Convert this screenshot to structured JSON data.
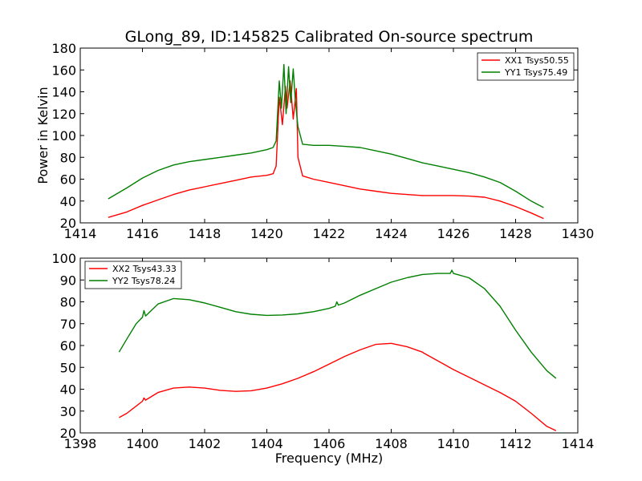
{
  "figure": {
    "title": "GLong_89, ID:145825 Calibrated On-source spectrum",
    "xlabel": "Frequency (MHz)"
  },
  "chart_data": [
    {
      "type": "line",
      "title": "GLong_89, ID:145825 Calibrated On-source spectrum",
      "xlabel": "",
      "ylabel": "Power in Kelvin",
      "xlim": [
        1414,
        1430
      ],
      "ylim": [
        20,
        180
      ],
      "xticks": [
        1414,
        1416,
        1418,
        1420,
        1422,
        1424,
        1426,
        1428,
        1430
      ],
      "yticks": [
        20,
        40,
        60,
        80,
        100,
        120,
        140,
        160,
        180
      ],
      "legend_position": "top-right",
      "series": [
        {
          "name": "XX1 Tsys50.55",
          "color": "#ff0000",
          "points": [
            [
              1414.9,
              25
            ],
            [
              1415.5,
              30
            ],
            [
              1416,
              36
            ],
            [
              1416.5,
              41
            ],
            [
              1417,
              46
            ],
            [
              1417.5,
              50
            ],
            [
              1418,
              53
            ],
            [
              1418.5,
              56
            ],
            [
              1419,
              59
            ],
            [
              1419.5,
              62
            ],
            [
              1420,
              63.5
            ],
            [
              1420.2,
              65
            ],
            [
              1420.3,
              72
            ],
            [
              1420.4,
              135
            ],
            [
              1420.5,
              110
            ],
            [
              1420.6,
              145
            ],
            [
              1420.65,
              125
            ],
            [
              1420.75,
              150
            ],
            [
              1420.85,
              115
            ],
            [
              1420.95,
              143
            ],
            [
              1421.0,
              80
            ],
            [
              1421.15,
              63
            ],
            [
              1421.5,
              60
            ],
            [
              1422,
              57
            ],
            [
              1422.5,
              54
            ],
            [
              1423,
              51
            ],
            [
              1423.5,
              49
            ],
            [
              1424,
              47
            ],
            [
              1424.5,
              46
            ],
            [
              1425,
              45
            ],
            [
              1425.5,
              45
            ],
            [
              1426,
              45
            ],
            [
              1426.5,
              44.5
            ],
            [
              1427,
              43.5
            ],
            [
              1427.5,
              40
            ],
            [
              1428,
              35
            ],
            [
              1428.5,
              29
            ],
            [
              1428.9,
              24
            ]
          ]
        },
        {
          "name": "YY1 Tsys75.49",
          "color": "#008000",
          "points": [
            [
              1414.9,
              42
            ],
            [
              1415.5,
              52
            ],
            [
              1416,
              61
            ],
            [
              1416.5,
              68
            ],
            [
              1417,
              73
            ],
            [
              1417.5,
              76
            ],
            [
              1418,
              78
            ],
            [
              1418.5,
              80
            ],
            [
              1419,
              82
            ],
            [
              1419.5,
              84
            ],
            [
              1420,
              87
            ],
            [
              1420.2,
              89
            ],
            [
              1420.3,
              95
            ],
            [
              1420.4,
              150
            ],
            [
              1420.47,
              125
            ],
            [
              1420.55,
              165
            ],
            [
              1420.62,
              120
            ],
            [
              1420.7,
              163
            ],
            [
              1420.77,
              130
            ],
            [
              1420.85,
              161
            ],
            [
              1420.92,
              130
            ],
            [
              1421.0,
              108
            ],
            [
              1421.15,
              92
            ],
            [
              1421.5,
              91
            ],
            [
              1422,
              91
            ],
            [
              1422.5,
              90
            ],
            [
              1423,
              89
            ],
            [
              1423.5,
              86
            ],
            [
              1424,
              83
            ],
            [
              1424.5,
              79
            ],
            [
              1425,
              75
            ],
            [
              1425.5,
              72
            ],
            [
              1426,
              69
            ],
            [
              1426.5,
              66
            ],
            [
              1427,
              62
            ],
            [
              1427.5,
              57
            ],
            [
              1428,
              49
            ],
            [
              1428.5,
              40
            ],
            [
              1428.9,
              34
            ]
          ]
        }
      ]
    },
    {
      "type": "line",
      "title": "",
      "xlabel": "Frequency (MHz)",
      "ylabel": "",
      "xlim": [
        1398,
        1414
      ],
      "ylim": [
        20,
        100
      ],
      "xticks": [
        1398,
        1400,
        1402,
        1404,
        1406,
        1408,
        1410,
        1412,
        1414
      ],
      "yticks": [
        20,
        30,
        40,
        50,
        60,
        70,
        80,
        90,
        100
      ],
      "legend_position": "top-left",
      "series": [
        {
          "name": "XX2 Tsys43.33",
          "color": "#ff0000",
          "points": [
            [
              1399.25,
              27
            ],
            [
              1399.5,
              29
            ],
            [
              1400,
              34.5
            ],
            [
              1400.05,
              36
            ],
            [
              1400.1,
              35
            ],
            [
              1400.5,
              38.5
            ],
            [
              1401,
              40.5
            ],
            [
              1401.5,
              41
            ],
            [
              1402,
              40.5
            ],
            [
              1402.5,
              39.5
            ],
            [
              1403,
              39
            ],
            [
              1403.5,
              39.3
            ],
            [
              1404,
              40.5
            ],
            [
              1404.5,
              42.5
            ],
            [
              1405,
              45
            ],
            [
              1405.5,
              48
            ],
            [
              1406,
              51.5
            ],
            [
              1406.5,
              55
            ],
            [
              1407,
              58
            ],
            [
              1407.5,
              60.5
            ],
            [
              1408,
              61
            ],
            [
              1408.5,
              59.5
            ],
            [
              1409,
              57
            ],
            [
              1409.05,
              56.5
            ],
            [
              1409.5,
              53
            ],
            [
              1410,
              49
            ],
            [
              1410.5,
              45.5
            ],
            [
              1411,
              42
            ],
            [
              1411.5,
              38.5
            ],
            [
              1412,
              34.5
            ],
            [
              1412.5,
              29
            ],
            [
              1413,
              23
            ],
            [
              1413.3,
              21
            ]
          ]
        },
        {
          "name": "YY2 Tsys78.24",
          "color": "#008000",
          "points": [
            [
              1399.25,
              57
            ],
            [
              1399.5,
              63
            ],
            [
              1399.8,
              70
            ],
            [
              1400,
              73
            ],
            [
              1400.05,
              76
            ],
            [
              1400.1,
              73.5
            ],
            [
              1400.5,
              79
            ],
            [
              1401,
              81.5
            ],
            [
              1401.5,
              81
            ],
            [
              1402,
              79.5
            ],
            [
              1402.5,
              77.5
            ],
            [
              1403,
              75.5
            ],
            [
              1403.5,
              74.3
            ],
            [
              1404,
              73.8
            ],
            [
              1404.5,
              74
            ],
            [
              1405,
              74.5
            ],
            [
              1405.5,
              75.5
            ],
            [
              1406,
              77
            ],
            [
              1406.2,
              78
            ],
            [
              1406.25,
              80
            ],
            [
              1406.3,
              78.5
            ],
            [
              1406.5,
              79.5
            ],
            [
              1407,
              83
            ],
            [
              1407.5,
              86
            ],
            [
              1408,
              89
            ],
            [
              1408.5,
              91
            ],
            [
              1409,
              92.5
            ],
            [
              1409.5,
              93
            ],
            [
              1409.9,
              93
            ],
            [
              1409.95,
              94.5
            ],
            [
              1410,
              93
            ],
            [
              1410.5,
              91
            ],
            [
              1411,
              86
            ],
            [
              1411.5,
              78
            ],
            [
              1412,
              67
            ],
            [
              1412.5,
              57
            ],
            [
              1413,
              48.5
            ],
            [
              1413.3,
              45
            ]
          ]
        }
      ]
    }
  ]
}
